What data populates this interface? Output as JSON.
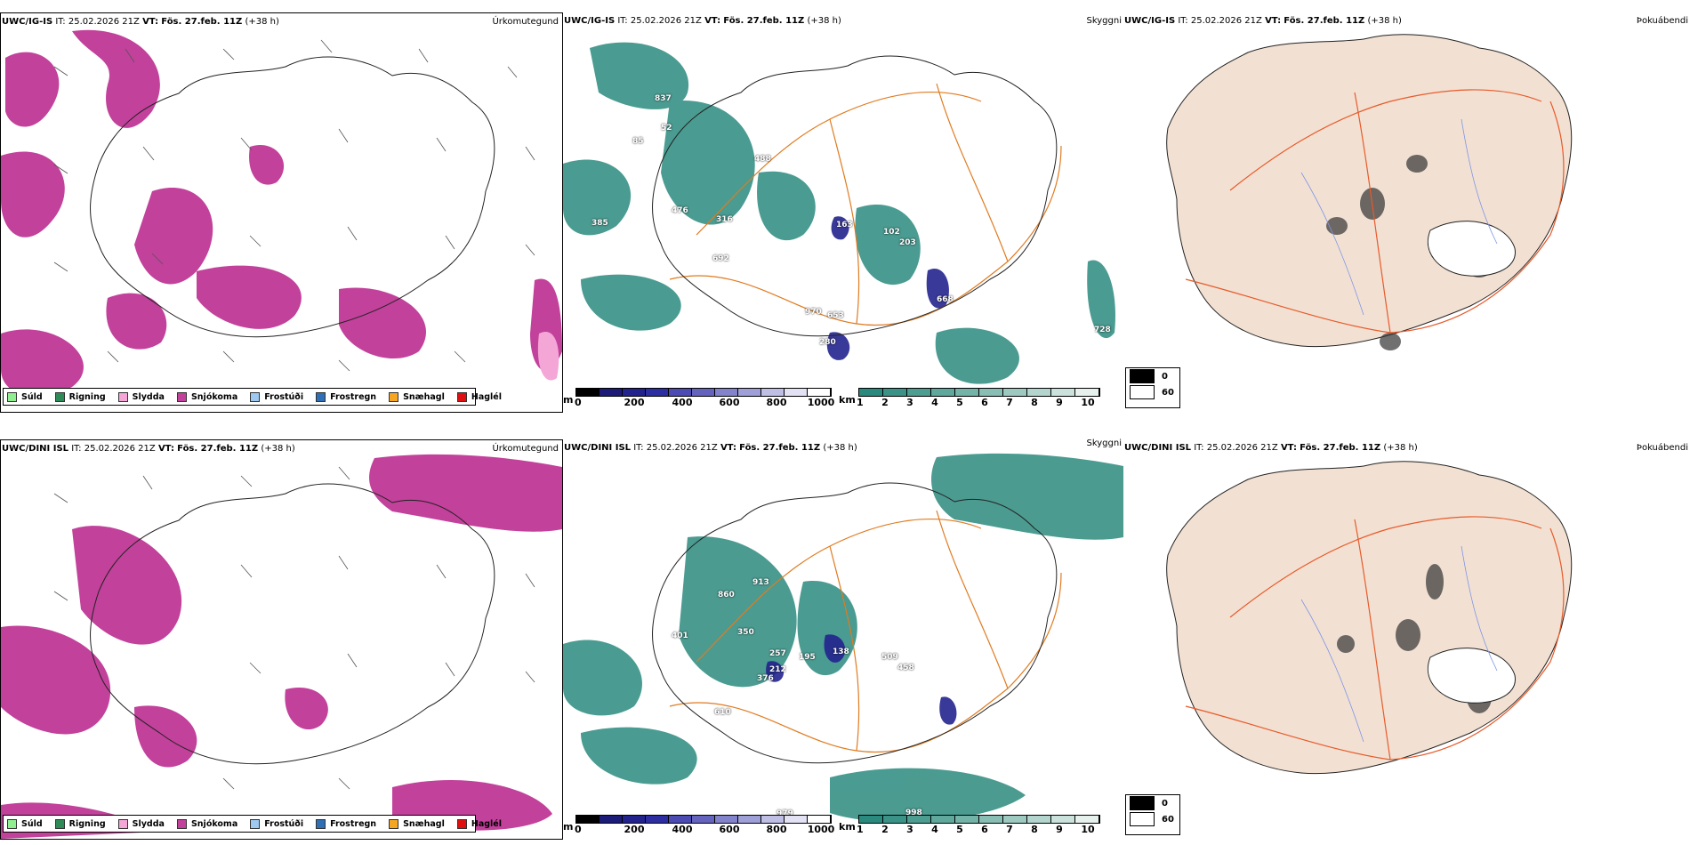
{
  "rows": [
    {
      "model": "UWC/IG-IS",
      "it_label": "IT:",
      "it_value": "25.02.2026 21Z",
      "vt_label": "VT:",
      "vt_value": "Fös. 27.feb. 11Z",
      "lead": "(+38 h)",
      "panel_titles": [
        "Úrkomutegund",
        "Skyggni",
        "Þokuábendi"
      ],
      "ceiling_labels": [
        "837",
        "52",
        "85",
        "488",
        "476",
        "385",
        "316",
        "692",
        "163",
        "102",
        "203",
        "668",
        "970",
        "653",
        "280",
        "728"
      ]
    },
    {
      "model": "UWC/DINI ISL",
      "it_label": "IT:",
      "it_value": "25.02.2026 21Z",
      "vt_label": "VT:",
      "vt_value": "Fös. 27.feb. 11Z",
      "lead": "(+38 h)",
      "panel_titles": [
        "Úrkomutegund",
        "Skyggni",
        "Þokuábendi"
      ],
      "ceiling_labels": [
        "913",
        "860",
        "401",
        "350",
        "257",
        "212",
        "376",
        "195",
        "138",
        "509",
        "458",
        "610",
        "998",
        "979"
      ]
    }
  ],
  "precip_legend": [
    {
      "label": "Súld",
      "color": "#90ee90"
    },
    {
      "label": "Rigning",
      "color": "#2e8b57"
    },
    {
      "label": "Slydda",
      "color": "#f4a6d7"
    },
    {
      "label": "Snjókoma",
      "color": "#c2419b"
    },
    {
      "label": "Frostúði",
      "color": "#9ec9f0"
    },
    {
      "label": "Frostregn",
      "color": "#2f6fb5"
    },
    {
      "label": "Snæhagl",
      "color": "#f5a623"
    },
    {
      "label": "Haglél",
      "color": "#e01010"
    }
  ],
  "ceiling_scale": {
    "unit": "m",
    "ticks": [
      "0",
      "200",
      "400",
      "600",
      "800",
      "1000"
    ],
    "colors": [
      "#000000",
      "#1c1c78",
      "#23238e",
      "#2e2ea3",
      "#4b4bb3",
      "#6464be",
      "#8383cb",
      "#a0a0d8",
      "#bfbfe6",
      "#e2e2f4",
      "#ffffff"
    ]
  },
  "visibility_scale": {
    "unit": "km",
    "ticks": [
      "1",
      "2",
      "3",
      "4",
      "5",
      "6",
      "7",
      "8",
      "9",
      "10"
    ],
    "colors": [
      "#2b8a7e",
      "#3a9386",
      "#4d9d91",
      "#60a89c",
      "#74b3a8",
      "#88beb4",
      "#9dc9c1",
      "#b3d5ce",
      "#cbe2dc",
      "#e6f1ee"
    ]
  },
  "fog_legend": [
    {
      "label": "0",
      "color": "#000000"
    },
    {
      "label": "60",
      "color": "#ffffff"
    }
  ]
}
